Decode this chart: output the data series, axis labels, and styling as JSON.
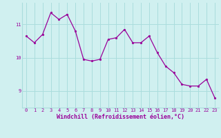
{
  "x": [
    0,
    1,
    2,
    3,
    4,
    5,
    6,
    7,
    8,
    9,
    10,
    11,
    12,
    13,
    14,
    15,
    16,
    17,
    18,
    19,
    20,
    21,
    22,
    23
  ],
  "y": [
    10.65,
    10.45,
    10.7,
    11.35,
    11.15,
    11.3,
    10.8,
    9.95,
    9.9,
    9.95,
    10.55,
    10.6,
    10.85,
    10.45,
    10.45,
    10.65,
    10.15,
    9.75,
    9.55,
    9.2,
    9.15,
    9.15,
    9.35,
    8.8
  ],
  "line_color": "#990099",
  "marker_color": "#990099",
  "bg_color": "#d0f0f0",
  "grid_color": "#aadddd",
  "xlabel": "Windchill (Refroidissement éolien,°C)",
  "xlabel_color": "#990099",
  "yticks": [
    9,
    10,
    11
  ],
  "xticks": [
    0,
    1,
    2,
    3,
    4,
    5,
    6,
    7,
    8,
    9,
    10,
    11,
    12,
    13,
    14,
    15,
    16,
    17,
    18,
    19,
    20,
    21,
    22,
    23
  ],
  "xlim": [
    -0.5,
    23.5
  ],
  "ylim": [
    8.5,
    11.65
  ],
  "figsize": [
    3.2,
    2.0
  ],
  "dpi": 100
}
